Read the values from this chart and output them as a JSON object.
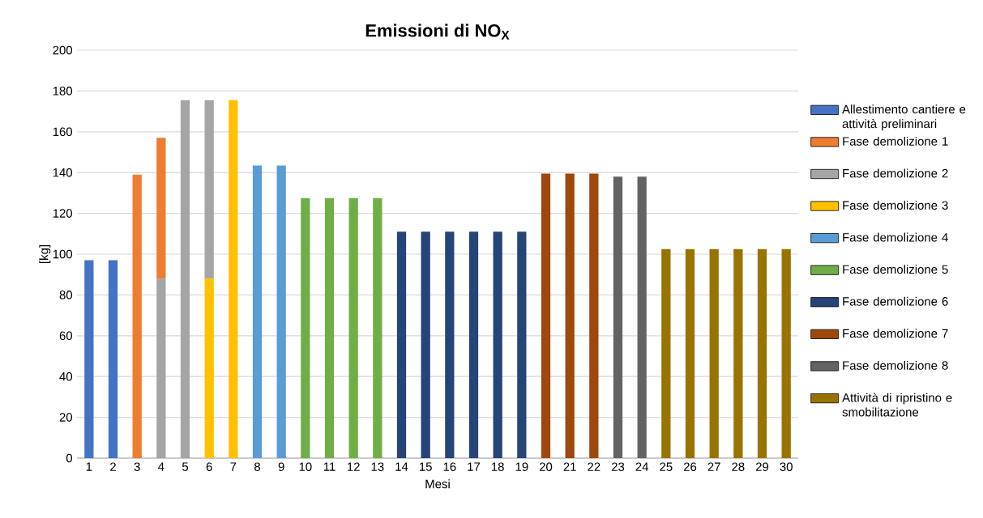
{
  "chart_data": {
    "type": "bar",
    "title": "Emissioni di NO$_{X}$",
    "xlabel": "Mesi",
    "ylabel": "[kg]",
    "categories": [
      "1",
      "2",
      "3",
      "4",
      "5",
      "6",
      "7",
      "8",
      "9",
      "10",
      "11",
      "12",
      "13",
      "14",
      "15",
      "16",
      "17",
      "18",
      "19",
      "20",
      "21",
      "22",
      "23",
      "24",
      "25",
      "26",
      "27",
      "28",
      "29",
      "30"
    ],
    "ylim": [
      0,
      200
    ],
    "yticks": [
      0,
      20,
      40,
      60,
      80,
      100,
      120,
      140,
      160,
      180,
      200
    ],
    "grid": "y",
    "legend": "right",
    "series": [
      {
        "name": "Allestimento cantiere e attività preliminari",
        "color": "#4472c4",
        "values": [
          97,
          97,
          null,
          null,
          null,
          null,
          null,
          null,
          null,
          null,
          null,
          null,
          null,
          null,
          null,
          null,
          null,
          null,
          null,
          null,
          null,
          null,
          null,
          null,
          null,
          null,
          null,
          null,
          null,
          null
        ]
      },
      {
        "name": "Fase demolizione 1",
        "color": "#ed7d31",
        "values": [
          null,
          null,
          139,
          69,
          null,
          null,
          null,
          null,
          null,
          null,
          null,
          null,
          null,
          null,
          null,
          null,
          null,
          null,
          null,
          null,
          null,
          null,
          null,
          null,
          null,
          null,
          null,
          null,
          null,
          null
        ],
        "base": [
          null,
          null,
          0,
          88,
          null,
          null,
          null,
          null,
          null,
          null,
          null,
          null,
          null,
          null,
          null,
          null,
          null,
          null,
          null,
          null,
          null,
          null,
          null,
          null,
          null,
          null,
          null,
          null,
          null,
          null
        ]
      },
      {
        "name": "Fase demolizione 2",
        "color": "#a5a5a5",
        "values": [
          null,
          null,
          null,
          88,
          175.5,
          87.5,
          null,
          null,
          null,
          null,
          null,
          null,
          null,
          null,
          null,
          null,
          null,
          null,
          null,
          null,
          null,
          null,
          null,
          null,
          null,
          null,
          null,
          null,
          null,
          null
        ],
        "base": [
          null,
          null,
          null,
          0,
          0,
          88,
          null,
          null,
          null,
          null,
          null,
          null,
          null,
          null,
          null,
          null,
          null,
          null,
          null,
          null,
          null,
          null,
          null,
          null,
          null,
          null,
          null,
          null,
          null,
          null
        ]
      },
      {
        "name": "Fase demolizione 3",
        "color": "#ffc000",
        "values": [
          null,
          null,
          null,
          null,
          null,
          88,
          175.5,
          null,
          null,
          null,
          null,
          null,
          null,
          null,
          null,
          null,
          null,
          null,
          null,
          null,
          null,
          null,
          null,
          null,
          null,
          null,
          null,
          null,
          null,
          null
        ]
      },
      {
        "name": "Fase demolizione 4",
        "color": "#5b9bd5",
        "values": [
          null,
          null,
          null,
          null,
          null,
          null,
          null,
          143.5,
          143.5,
          null,
          null,
          null,
          null,
          null,
          null,
          null,
          null,
          null,
          null,
          null,
          null,
          null,
          null,
          null,
          null,
          null,
          null,
          null,
          null,
          null
        ]
      },
      {
        "name": "Fase demolizione 5",
        "color": "#70ad47",
        "values": [
          null,
          null,
          null,
          null,
          null,
          null,
          null,
          null,
          null,
          127.5,
          127.5,
          127.5,
          127.5,
          null,
          null,
          null,
          null,
          null,
          null,
          null,
          null,
          null,
          null,
          null,
          null,
          null,
          null,
          null,
          null,
          null
        ]
      },
      {
        "name": "Fase demolizione 6",
        "color": "#264478",
        "values": [
          null,
          null,
          null,
          null,
          null,
          null,
          null,
          null,
          null,
          null,
          null,
          null,
          null,
          111,
          111,
          111,
          111,
          111,
          111,
          null,
          null,
          null,
          null,
          null,
          null,
          null,
          null,
          null,
          null,
          null
        ]
      },
      {
        "name": "Fase demolizione 7",
        "color": "#9e480e",
        "values": [
          null,
          null,
          null,
          null,
          null,
          null,
          null,
          null,
          null,
          null,
          null,
          null,
          null,
          null,
          null,
          null,
          null,
          null,
          null,
          139.5,
          139.5,
          139.5,
          null,
          null,
          null,
          null,
          null,
          null,
          null,
          null
        ]
      },
      {
        "name": "Fase demolizione 8",
        "color": "#636363",
        "values": [
          null,
          null,
          null,
          null,
          null,
          null,
          null,
          null,
          null,
          null,
          null,
          null,
          null,
          null,
          null,
          null,
          null,
          null,
          null,
          null,
          null,
          null,
          138,
          138,
          null,
          null,
          null,
          null,
          null,
          null
        ]
      },
      {
        "name": "Attività di ripristino e smobilitazione",
        "color": "#997300",
        "values": [
          null,
          null,
          null,
          null,
          null,
          null,
          null,
          null,
          null,
          null,
          null,
          null,
          null,
          null,
          null,
          null,
          null,
          null,
          null,
          null,
          null,
          null,
          null,
          null,
          102.5,
          102.5,
          102.5,
          102.5,
          102.5,
          102.5
        ]
      }
    ]
  }
}
